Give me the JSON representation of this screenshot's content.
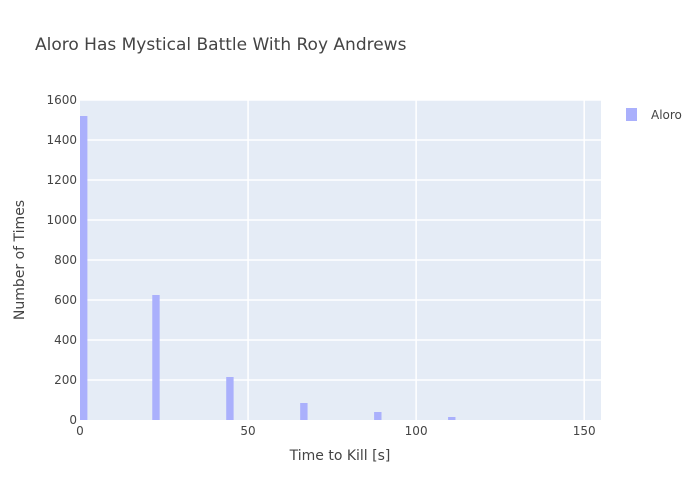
{
  "chart_data": {
    "type": "bar",
    "title": "Aloro Has Mystical Battle With Roy Andrews",
    "xlabel": "Time to Kill [s]",
    "ylabel": "Number of Times",
    "xlim": [
      0,
      155
    ],
    "ylim": [
      0,
      1600
    ],
    "x_ticks": [
      0,
      50,
      100,
      150
    ],
    "y_ticks": [
      0,
      200,
      400,
      600,
      800,
      1000,
      1200,
      1400,
      1600
    ],
    "grid": true,
    "legend_position": "top-right",
    "bar_width": 2.2,
    "series": [
      {
        "name": "Aloro",
        "color": "#aab0fc",
        "x": [
          1.1,
          22.6,
          44.6,
          66.6,
          88.6,
          110.6
        ],
        "values": [
          1520,
          625,
          215,
          85,
          40,
          15
        ]
      }
    ]
  }
}
